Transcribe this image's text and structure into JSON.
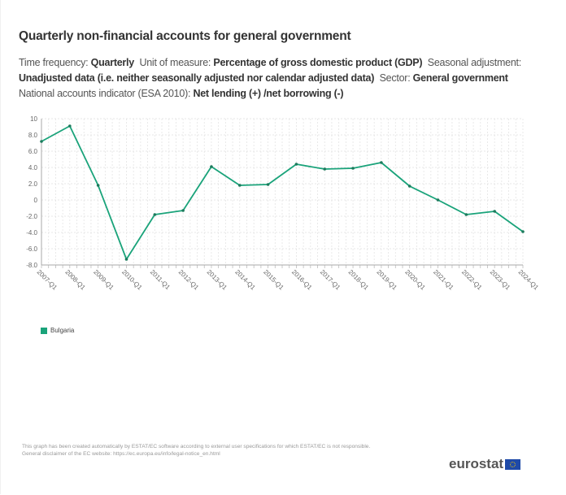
{
  "title": "Quarterly non-financial accounts for general government",
  "subtitle": {
    "parts": [
      {
        "label": "Time frequency: ",
        "value": "Quarterly"
      },
      {
        "label": "Unit of measure: ",
        "value": "Percentage of gross domestic product (GDP)"
      },
      {
        "label": "Seasonal adjustment: ",
        "value": "Unadjusted data (i.e. neither seasonally adjusted nor calendar adjusted data)"
      },
      {
        "label": "Sector: ",
        "value": "General government"
      },
      {
        "label": "National accounts indicator (ESA 2010): ",
        "value": "Net lending (+) /net borrowing (-)"
      }
    ]
  },
  "chart_data": {
    "type": "line",
    "title": "Quarterly non-financial accounts for general government",
    "xlabel": "",
    "ylabel": "",
    "x": [
      "2007-Q1",
      "2008-Q1",
      "2009-Q1",
      "2010-Q1",
      "2011-Q1",
      "2012-Q1",
      "2013-Q1",
      "2014-Q1",
      "2015-Q1",
      "2016-Q1",
      "2017-Q1",
      "2018-Q1",
      "2019-Q1",
      "2020-Q1",
      "2021-Q1",
      "2022-Q1",
      "2023-Q1",
      "2024-Q1"
    ],
    "series": [
      {
        "name": "Bulgaria",
        "color": "#1aa37a",
        "values": [
          7.2,
          9.1,
          1.8,
          -7.3,
          -1.8,
          -1.3,
          4.1,
          1.8,
          1.9,
          4.4,
          3.8,
          3.9,
          4.6,
          1.7,
          0.0,
          -1.8,
          -1.4,
          -3.9
        ]
      }
    ],
    "ylim": [
      -8.0,
      10
    ],
    "yticks": [
      10,
      8.0,
      6.0,
      4.0,
      2.0,
      0,
      -2.0,
      -4.0,
      -6.0,
      -8.0
    ],
    "ytick_labels": [
      "10",
      "8.0",
      "6.0",
      "4.0",
      "2.0",
      "0",
      "-2.0",
      "-4.0",
      "-6.0",
      "-8.0"
    ],
    "minor_x_ticks_per_interval": 4,
    "grid": true,
    "legend_position": "bottom-left"
  },
  "legend": {
    "label": "Bulgaria",
    "color": "#1aa37a"
  },
  "disclaimer": {
    "line1": "This graph has been created automatically by ESTAT/EC software according to external user specifications for which ESTAT/EC is not responsible.",
    "line2": "General disclaimer of the EC website: https://ec.europa.eu/info/legal-notice_en.html"
  },
  "logo": {
    "text": "eurostat"
  }
}
